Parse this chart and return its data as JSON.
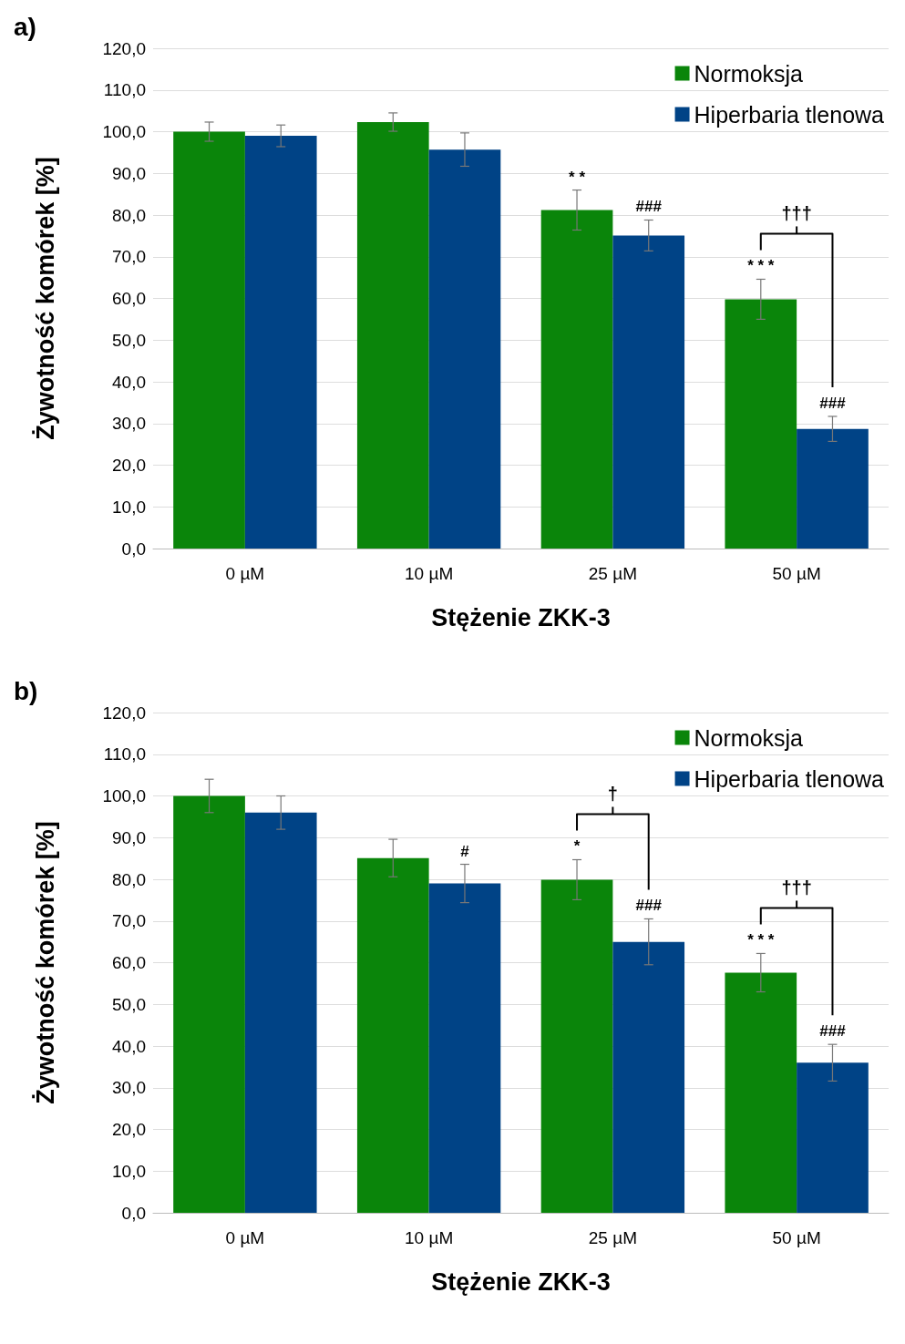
{
  "chart_data": [
    {
      "type": "bar",
      "title": "a)",
      "xlabel": "Stężenie ZKK-3",
      "ylabel": "Żywotność komórek [%]",
      "categories": [
        "0 µM",
        "10 µM",
        "25 µM",
        "50 µM"
      ],
      "series": [
        {
          "name": "Normoksja",
          "color": "#0a850a",
          "values": [
            100,
            102.3,
            81.2,
            59.8
          ],
          "errors": [
            2.3,
            2.2,
            4.8,
            4.8
          ],
          "value_labels": [
            null,
            null,
            "* *",
            "* * *"
          ]
        },
        {
          "name": "Hiperbaria tlenowa",
          "color": "#004386",
          "values": [
            99,
            95.7,
            75.1,
            28.7
          ],
          "errors": [
            2.6,
            4,
            3.7,
            3
          ],
          "value_labels": [
            null,
            null,
            "###",
            "###"
          ]
        }
      ],
      "annotations": [
        "†††"
      ],
      "ylim": [
        0,
        120
      ],
      "yticks": [
        {
          "value": 0,
          "label": "0,0"
        },
        {
          "value": 10,
          "label": "10,0"
        },
        {
          "value": 20,
          "label": "20,0"
        },
        {
          "value": 30,
          "label": "30,0"
        },
        {
          "value": 40,
          "label": "40,0"
        },
        {
          "value": 50,
          "label": "50,0"
        },
        {
          "value": 60,
          "label": "60,0"
        },
        {
          "value": 70,
          "label": "70,0"
        },
        {
          "value": 80,
          "label": "80,0"
        },
        {
          "value": 90,
          "label": "90,0"
        },
        {
          "value": 100,
          "label": "100,0"
        },
        {
          "value": 110,
          "label": "110,0"
        },
        {
          "value": 120,
          "label": "120,0"
        }
      ],
      "grid": "y",
      "legend": "top right"
    },
    {
      "type": "bar",
      "title": "b)",
      "xlabel": "Stężenie ZKK-3",
      "ylabel": "Żywotność komórek [%]",
      "categories": [
        "0 µM",
        "10 µM",
        "25 µM",
        "50 µM"
      ],
      "series": [
        {
          "name": "Normoksja",
          "color": "#0a850a",
          "values": [
            100,
            85.1,
            79.9,
            57.6
          ],
          "errors": [
            4,
            4.5,
            4.8,
            4.6
          ],
          "value_labels": [
            null,
            null,
            "*",
            "* * *"
          ]
        },
        {
          "name": "Hiperbaria tlenowa",
          "color": "#004386",
          "values": [
            96,
            79,
            65,
            36
          ],
          "errors": [
            4,
            4.6,
            5.5,
            4.4
          ],
          "value_labels": [
            null,
            "#",
            "###",
            "###"
          ]
        }
      ],
      "annotations": [
        "†",
        "†††"
      ],
      "ylim": [
        0,
        120
      ],
      "yticks": [
        {
          "value": 0,
          "label": "0,0"
        },
        {
          "value": 10,
          "label": "10,0"
        },
        {
          "value": 20,
          "label": "20,0"
        },
        {
          "value": 30,
          "label": "30,0"
        },
        {
          "value": 40,
          "label": "40,0"
        },
        {
          "value": 50,
          "label": "50,0"
        },
        {
          "value": 60,
          "label": "60,0"
        },
        {
          "value": 70,
          "label": "70,0"
        },
        {
          "value": 80,
          "label": "80,0"
        },
        {
          "value": 90,
          "label": "90,0"
        },
        {
          "value": 100,
          "label": "100,0"
        },
        {
          "value": 110,
          "label": "110,0"
        },
        {
          "value": 120,
          "label": "120,0"
        }
      ],
      "grid": "y",
      "legend": "top right"
    }
  ]
}
